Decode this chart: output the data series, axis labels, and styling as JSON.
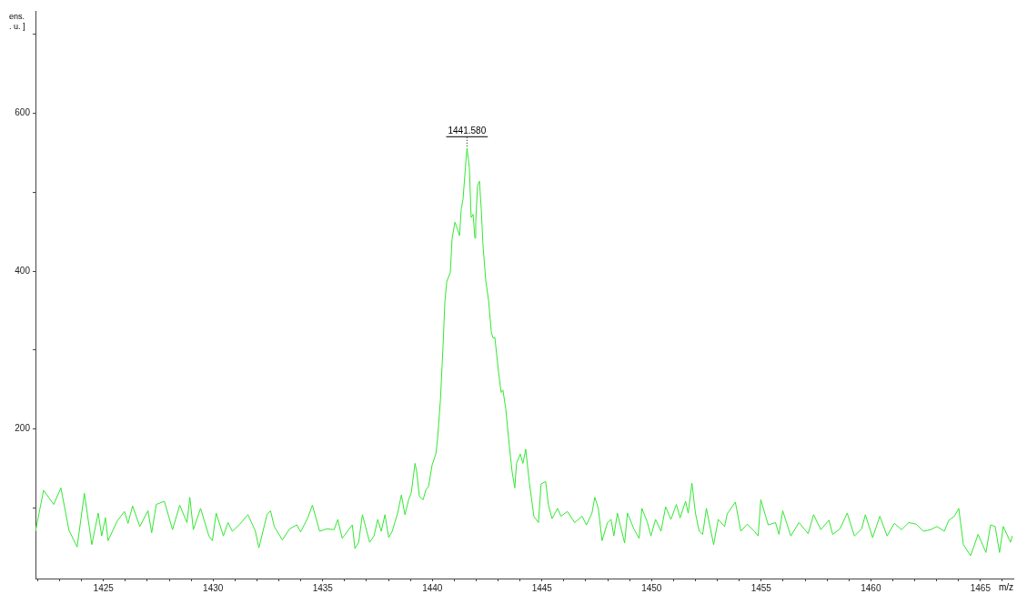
{
  "chart_data": {
    "type": "line",
    "ylabel": "ens.\n. u. ]",
    "xlabel": "m/z",
    "xlim": [
      1421.9,
      1466.5
    ],
    "ylim": [
      10,
      730
    ],
    "xticks": [
      {
        "value": 1422,
        "label": null
      },
      {
        "value": 1423,
        "label": null
      },
      {
        "value": 1424,
        "label": null
      },
      1425,
      {
        "value": 1426,
        "label": null
      },
      {
        "value": 1427,
        "label": null
      },
      {
        "value": 1428,
        "label": null
      },
      {
        "value": 1429,
        "label": null
      },
      1430,
      {
        "value": 1431,
        "label": null
      },
      {
        "value": 1432,
        "label": null
      },
      {
        "value": 1433,
        "label": null
      },
      {
        "value": 1434,
        "label": null
      },
      1435,
      {
        "value": 1436,
        "label": null
      },
      {
        "value": 1437,
        "label": null
      },
      {
        "value": 1438,
        "label": null
      },
      {
        "value": 1439,
        "label": null
      },
      1440,
      {
        "value": 1441,
        "label": null
      },
      {
        "value": 1442,
        "label": null
      },
      {
        "value": 1443,
        "label": null
      },
      {
        "value": 1444,
        "label": null
      },
      1445,
      {
        "value": 1446,
        "label": null
      },
      {
        "value": 1447,
        "label": null
      },
      {
        "value": 1448,
        "label": null
      },
      {
        "value": 1449,
        "label": null
      },
      1450,
      {
        "value": 1451,
        "label": null
      },
      {
        "value": 1452,
        "label": null
      },
      {
        "value": 1453,
        "label": null
      },
      {
        "value": 1454,
        "label": null
      },
      1455,
      {
        "value": 1456,
        "label": null
      },
      {
        "value": 1457,
        "label": null
      },
      {
        "value": 1458,
        "label": null
      },
      {
        "value": 1459,
        "label": null
      },
      1460,
      {
        "value": 1461,
        "label": null
      },
      {
        "value": 1462,
        "label": null
      },
      {
        "value": 1463,
        "label": null
      },
      {
        "value": 1464,
        "label": null
      },
      1465,
      {
        "value": 1466,
        "label": null
      }
    ],
    "yticks": [
      {
        "value": 100,
        "label": null
      },
      200,
      {
        "value": 300,
        "label": null
      },
      400,
      {
        "value": 500,
        "label": null
      },
      600,
      {
        "value": 700,
        "label": null
      }
    ],
    "grid": false,
    "legend": false,
    "marker": "none",
    "line_style": "solid",
    "annotations": [
      {
        "text": "1441.580",
        "x": 1441.58,
        "y": 556
      }
    ],
    "series": [
      {
        "color": "#33e833",
        "x": [
          1421.9,
          1422.27,
          1422.73,
          1423.06,
          1423.43,
          1423.8,
          1424.13,
          1424.47,
          1424.76,
          1424.92,
          1425.09,
          1425.21,
          1425.63,
          1425.96,
          1426.12,
          1426.33,
          1426.66,
          1427.03,
          1427.2,
          1427.41,
          1427.78,
          1428.15,
          1428.48,
          1428.81,
          1428.94,
          1429.1,
          1429.43,
          1429.81,
          1429.97,
          1430.14,
          1430.47,
          1430.68,
          1430.88,
          1431.22,
          1431.59,
          1431.92,
          1432.09,
          1432.46,
          1432.62,
          1432.79,
          1433.16,
          1433.49,
          1433.82,
          1433.99,
          1434.32,
          1434.53,
          1434.86,
          1435.19,
          1435.52,
          1435.69,
          1435.89,
          1436.35,
          1436.47,
          1436.64,
          1436.81,
          1437.14,
          1437.34,
          1437.51,
          1437.67,
          1437.84,
          1438.01,
          1438.17,
          1438.42,
          1438.59,
          1438.75,
          1438.92,
          1439.04,
          1439.21,
          1439.29,
          1439.41,
          1439.58,
          1439.7,
          1439.83,
          1439.99,
          1440.16,
          1440.24,
          1440.37,
          1440.49,
          1440.57,
          1440.66,
          1440.82,
          1440.9,
          1441.03,
          1441.11,
          1441.24,
          1441.32,
          1441.4,
          1441.53,
          1441.58,
          1441.69,
          1441.77,
          1441.86,
          1441.94,
          1441.98,
          1442.06,
          1442.15,
          1442.23,
          1442.31,
          1442.44,
          1442.56,
          1442.69,
          1442.77,
          1442.85,
          1443.02,
          1443.14,
          1443.22,
          1443.35,
          1443.51,
          1443.64,
          1443.76,
          1443.84,
          1444.01,
          1444.13,
          1444.26,
          1444.42,
          1444.63,
          1444.84,
          1444.96,
          1445.17,
          1445.29,
          1445.46,
          1445.71,
          1445.87,
          1446.16,
          1446.49,
          1446.83,
          1447.03,
          1447.28,
          1447.41,
          1447.57,
          1447.74,
          1447.99,
          1448.15,
          1448.28,
          1448.44,
          1448.77,
          1448.9,
          1449.19,
          1449.43,
          1449.56,
          1449.81,
          1449.97,
          1450.18,
          1450.43,
          1450.64,
          1450.88,
          1451.13,
          1451.3,
          1451.55,
          1451.67,
          1451.84,
          1452.0,
          1452.17,
          1452.33,
          1452.5,
          1452.83,
          1453.04,
          1453.33,
          1453.45,
          1453.82,
          1454.07,
          1454.36,
          1454.69,
          1454.86,
          1454.98,
          1455.32,
          1455.65,
          1455.81,
          1455.98,
          1456.35,
          1456.72,
          1457.14,
          1457.39,
          1457.72,
          1458.09,
          1458.26,
          1458.59,
          1458.92,
          1459.25,
          1459.58,
          1459.75,
          1460.08,
          1460.41,
          1460.74,
          1461.07,
          1461.4,
          1461.73,
          1462.07,
          1462.4,
          1462.73,
          1463.02,
          1463.35,
          1463.56,
          1463.81,
          1464.01,
          1464.22,
          1464.55,
          1464.89,
          1465.25,
          1465.46,
          1465.67,
          1465.87,
          1466.04,
          1466.37,
          1466.45
        ],
        "values": [
          70,
          122,
          104,
          125,
          71,
          50,
          118,
          53,
          93,
          64,
          87,
          58,
          83,
          95,
          80,
          102,
          76,
          96,
          68,
          104,
          108,
          72,
          103,
          81,
          113,
          72,
          99,
          64,
          58,
          93,
          64,
          81,
          70,
          79,
          91,
          71,
          49,
          91,
          96,
          76,
          59,
          73,
          78,
          69,
          87,
          103,
          70,
          73,
          72,
          85,
          61,
          78,
          48,
          56,
          91,
          56,
          64,
          85,
          70,
          91,
          62,
          70,
          93,
          116,
          91,
          110,
          119,
          156,
          145,
          114,
          110,
          122,
          127,
          154,
          168,
          187,
          237,
          306,
          360,
          387,
          398,
          441,
          462,
          456,
          445,
          479,
          491,
          539,
          556,
          531,
          468,
          472,
          442,
          462,
          508,
          514,
          479,
          433,
          387,
          364,
          323,
          315,
          316,
          272,
          246,
          249,
          225,
          179,
          145,
          125,
          156,
          168,
          156,
          174,
          133,
          89,
          81,
          130,
          133,
          104,
          86,
          99,
          89,
          95,
          81,
          89,
          78,
          93,
          113,
          99,
          58,
          81,
          85,
          64,
          93,
          55,
          93,
          73,
          61,
          99,
          81,
          64,
          85,
          70,
          101,
          85,
          104,
          87,
          108,
          93,
          131,
          93,
          70,
          66,
          99,
          53,
          85,
          76,
          92,
          107,
          70,
          79,
          70,
          64,
          110,
          78,
          81,
          66,
          96,
          64,
          81,
          67,
          91,
          72,
          84,
          66,
          73,
          93,
          64,
          73,
          91,
          62,
          89,
          64,
          80,
          72,
          81,
          79,
          70,
          72,
          76,
          70,
          84,
          89,
          99,
          53,
          39,
          66,
          43,
          78,
          76,
          43,
          76,
          56,
          64
        ]
      }
    ]
  }
}
